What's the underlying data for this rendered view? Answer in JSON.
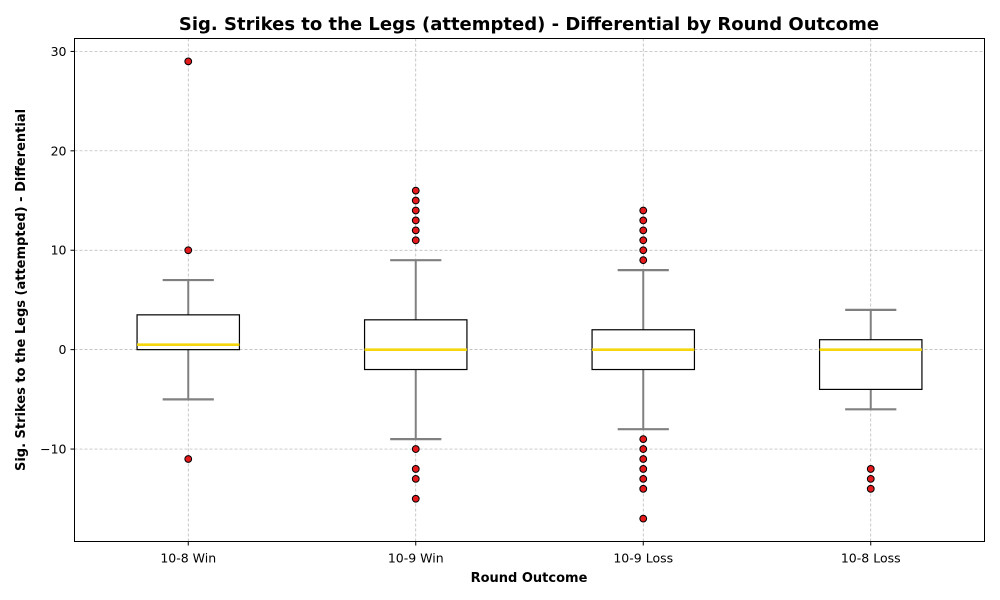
{
  "chart_data": {
    "type": "box",
    "title": "Sig. Strikes to the Legs (attempted) - Differential by Round Outcome",
    "xlabel": "Round Outcome",
    "ylabel": "Sig. Strikes to the Legs (attempted) - Differential",
    "ylim": [
      -19.3,
      31.3
    ],
    "yticks": [
      -10,
      0,
      10,
      20,
      30
    ],
    "ytick_labels": [
      "−10",
      "0",
      "10",
      "20",
      "30"
    ],
    "grid": true,
    "colors": {
      "box_edge": "#000000",
      "median": "#f5d60c",
      "whisker": "#808080",
      "outlier_fill": "#e41a1c",
      "outlier_edge": "#000000",
      "grid": "#b0b0b0"
    },
    "categories": [
      "10-8 Win",
      "10-9 Win",
      "10-9 Loss",
      "10-8 Loss"
    ],
    "boxes": [
      {
        "category": "10-8 Win",
        "whislo": -5,
        "q1": 0,
        "median": 0.5,
        "q3": 3.5,
        "whishi": 7,
        "fliers": [
          29,
          10,
          -11
        ]
      },
      {
        "category": "10-9 Win",
        "whislo": -9,
        "q1": -2,
        "median": 0,
        "q3": 3,
        "whishi": 9,
        "fliers": [
          16,
          15,
          14,
          13,
          12,
          11,
          -10,
          -12,
          -13,
          -15
        ]
      },
      {
        "category": "10-9 Loss",
        "whislo": -8,
        "q1": -2,
        "median": 0,
        "q3": 2,
        "whishi": 8,
        "fliers": [
          14,
          13,
          12,
          11,
          10,
          9,
          -9,
          -10,
          -11,
          -12,
          -13,
          -14,
          -17
        ]
      },
      {
        "category": "10-8 Loss",
        "whislo": -6,
        "q1": -4,
        "median": 0,
        "q3": 1,
        "whishi": 4,
        "fliers": [
          -12,
          -13,
          -14
        ]
      }
    ]
  }
}
